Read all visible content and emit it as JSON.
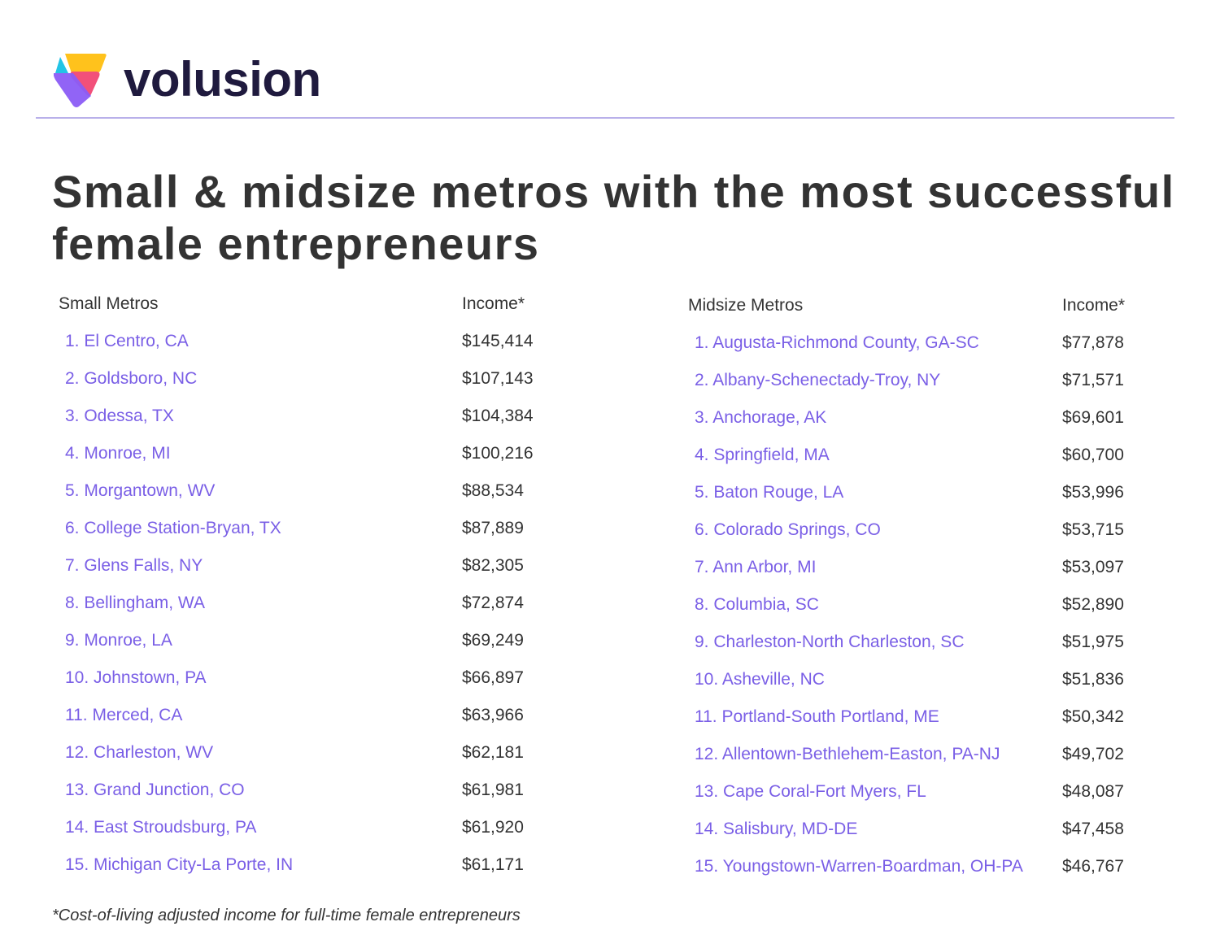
{
  "brand": {
    "name": "volusion",
    "colors": {
      "yellow": "#ffc21c",
      "cyan": "#22c4e6",
      "pink": "#f2507a",
      "purple": "#8b5cf6"
    }
  },
  "title": "Small & midsize metros with the most successful female entrepreneurs",
  "small": {
    "header_metro": "Small Metros",
    "header_income": "Income*",
    "rows": [
      {
        "metro": "1. El Centro, CA",
        "income": "$145,414"
      },
      {
        "metro": "2. Goldsboro, NC",
        "income": "$107,143"
      },
      {
        "metro": "3. Odessa, TX",
        "income": "$104,384"
      },
      {
        "metro": "4. Monroe, MI",
        "income": "$100,216"
      },
      {
        "metro": "5. Morgantown, WV",
        "income": "$88,534"
      },
      {
        "metro": "6. College Station-Bryan, TX",
        "income": "$87,889"
      },
      {
        "metro": "7. Glens Falls, NY",
        "income": "$82,305"
      },
      {
        "metro": "8. Bellingham, WA",
        "income": "$72,874"
      },
      {
        "metro": "9. Monroe, LA",
        "income": "$69,249"
      },
      {
        "metro": "10. Johnstown, PA",
        "income": "$66,897"
      },
      {
        "metro": "11. Merced, CA",
        "income": "$63,966"
      },
      {
        "metro": "12. Charleston, WV",
        "income": "$62,181"
      },
      {
        "metro": "13. Grand Junction, CO",
        "income": "$61,981"
      },
      {
        "metro": "14. East Stroudsburg, PA",
        "income": "$61,920"
      },
      {
        "metro": "15. Michigan City-La Porte, IN",
        "income": "$61,171"
      }
    ]
  },
  "midsize": {
    "header_metro": "Midsize Metros",
    "header_income": "Income*",
    "rows": [
      {
        "metro": "1. Augusta-Richmond County, GA-SC",
        "income": "$77,878"
      },
      {
        "metro": "2. Albany-Schenectady-Troy, NY",
        "income": "$71,571"
      },
      {
        "metro": "3. Anchorage, AK",
        "income": "$69,601"
      },
      {
        "metro": "4. Springfield, MA",
        "income": "$60,700"
      },
      {
        "metro": "5. Baton Rouge, LA",
        "income": "$53,996"
      },
      {
        "metro": "6. Colorado Springs, CO",
        "income": "$53,715"
      },
      {
        "metro": "7. Ann Arbor, MI",
        "income": "$53,097"
      },
      {
        "metro": "8. Columbia, SC",
        "income": "$52,890"
      },
      {
        "metro": "9. Charleston-North Charleston, SC",
        "income": "$51,975"
      },
      {
        "metro": "10. Asheville, NC",
        "income": "$51,836"
      },
      {
        "metro": "11. Portland-South Portland, ME",
        "income": "$50,342"
      },
      {
        "metro": "12. Allentown-Bethlehem-Easton, PA-NJ",
        "income": "$49,702"
      },
      {
        "metro": "13. Cape Coral-Fort Myers, FL",
        "income": "$48,087"
      },
      {
        "metro": "14. Salisbury, MD-DE",
        "income": "$47,458"
      },
      {
        "metro": "15. Youngstown-Warren-Boardman, OH-PA",
        "income": "$46,767"
      }
    ]
  },
  "footnote": "*Cost-of-living adjusted income for full-time female entrepreneurs"
}
